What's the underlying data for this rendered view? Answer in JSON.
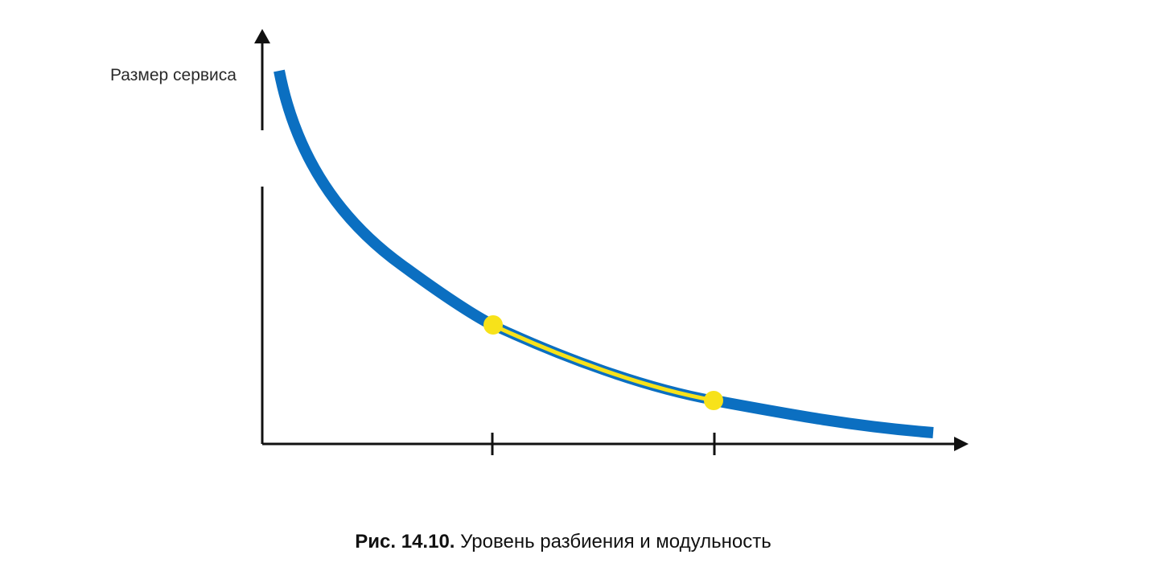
{
  "diagram": {
    "y_axis_label": "Размер сервиса",
    "colors": {
      "curve": "#0b6fc1",
      "highlight": "#f7e21a",
      "axis": "#111111",
      "background": "#ffffff"
    }
  },
  "caption": {
    "number": "Рис. 14.10.",
    "text": "Уровень разбиения и модульность"
  }
}
